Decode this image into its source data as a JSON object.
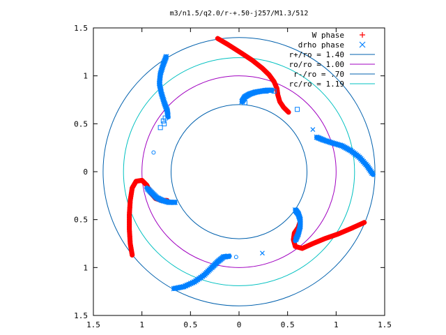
{
  "chart_data": {
    "type": "scatter",
    "title": "m3/n1.5/q2.0/r-+.50-j257/M1.3/512",
    "xlabel": "",
    "ylabel": "",
    "xlim": [
      -1.5,
      1.5
    ],
    "ylim": [
      -1.5,
      1.5
    ],
    "x_ticks": [
      -1.5,
      -1,
      -0.5,
      0,
      0.5,
      1,
      1.5
    ],
    "y_ticks": [
      -1.5,
      -1,
      -0.5,
      0,
      0.5,
      1,
      1.5
    ],
    "x_tick_labels": [
      "1.5",
      "1",
      "0.5",
      "0",
      "0.5",
      "1",
      "1.5"
    ],
    "y_tick_labels": [
      "1.5",
      "1",
      "0.5",
      "0",
      "0.5",
      "1",
      "1.5"
    ],
    "grid": false,
    "legend_position": "top-right",
    "legend": [
      {
        "label": "W phase",
        "color": "#ff0000",
        "marker": "plus"
      },
      {
        "label": "drho phase",
        "color": "#0080ff",
        "marker": "cross"
      },
      {
        "label": "r+/ro = 1.40",
        "color": "#0060ad",
        "marker": "line"
      },
      {
        "label": "ro/ro = 1.00",
        "color": "#a000c0",
        "marker": "line"
      },
      {
        "label": "r-/ro = .70",
        "color": "#0060ad",
        "marker": "line"
      },
      {
        "label": "rc/ro = 1.19",
        "color": "#00c0c0",
        "marker": "line"
      }
    ],
    "circles": [
      {
        "r": 1.4,
        "color": "#0060ad"
      },
      {
        "r": 1.0,
        "color": "#a000c0"
      },
      {
        "r": 0.7,
        "color": "#0060ad"
      },
      {
        "r": 1.19,
        "color": "#00c0c0"
      }
    ],
    "series": [
      {
        "name": "W phase",
        "color": "#ff0000",
        "curves": [
          [
            [
              -0.22,
              1.39
            ],
            [
              -0.12,
              1.33
            ],
            [
              0.02,
              1.24
            ],
            [
              0.14,
              1.16
            ],
            [
              0.24,
              1.08
            ],
            [
              0.31,
              1.01
            ],
            [
              0.36,
              0.94
            ],
            [
              0.39,
              0.87
            ],
            [
              0.4,
              0.8
            ],
            [
              0.42,
              0.73
            ],
            [
              0.46,
              0.67
            ],
            [
              0.51,
              0.62
            ]
          ],
          [
            [
              1.29,
              -0.53
            ],
            [
              1.16,
              -0.59
            ],
            [
              1.02,
              -0.65
            ],
            [
              0.88,
              -0.7
            ],
            [
              0.76,
              -0.75
            ],
            [
              0.65,
              -0.8
            ],
            [
              0.58,
              -0.78
            ],
            [
              0.56,
              -0.71
            ],
            [
              0.57,
              -0.64
            ],
            [
              0.61,
              -0.58
            ],
            [
              0.63,
              -0.52
            ]
          ],
          [
            [
              -1.1,
              -0.87
            ],
            [
              -1.12,
              -0.75
            ],
            [
              -1.13,
              -0.6
            ],
            [
              -1.13,
              -0.45
            ],
            [
              -1.12,
              -0.3
            ],
            [
              -1.1,
              -0.17
            ],
            [
              -1.06,
              -0.1
            ],
            [
              -1.0,
              -0.09
            ],
            [
              -0.95,
              -0.14
            ],
            [
              -0.91,
              -0.22
            ],
            [
              -0.86,
              -0.28
            ],
            [
              -0.8,
              -0.3
            ],
            [
              -0.74,
              -0.3
            ]
          ]
        ],
        "scattered": []
      },
      {
        "name": "drho phase",
        "color": "#0080ff",
        "curves": [
          [
            [
              -0.75,
              1.2
            ],
            [
              -0.78,
              1.12
            ],
            [
              -0.81,
              1.02
            ],
            [
              -0.82,
              0.92
            ],
            [
              -0.8,
              0.82
            ],
            [
              -0.77,
              0.72
            ],
            [
              -0.74,
              0.64
            ],
            [
              -0.73,
              0.57
            ]
          ],
          [
            [
              0.03,
              0.73
            ],
            [
              0.06,
              0.78
            ],
            [
              0.11,
              0.81
            ],
            [
              0.17,
              0.83
            ],
            [
              0.23,
              0.84
            ],
            [
              0.29,
              0.85
            ],
            [
              0.34,
              0.85
            ]
          ],
          [
            [
              0.8,
              0.36
            ],
            [
              0.87,
              0.33
            ],
            [
              0.96,
              0.3
            ],
            [
              1.06,
              0.27
            ],
            [
              1.15,
              0.22
            ],
            [
              1.24,
              0.15
            ],
            [
              1.32,
              0.06
            ],
            [
              1.38,
              -0.03
            ]
          ],
          [
            [
              0.58,
              -0.4
            ],
            [
              0.61,
              -0.44
            ],
            [
              0.63,
              -0.5
            ],
            [
              0.63,
              -0.57
            ],
            [
              0.61,
              -0.65
            ],
            [
              0.58,
              -0.72
            ]
          ],
          [
            [
              -0.67,
              -1.22
            ],
            [
              -0.57,
              -1.2
            ],
            [
              -0.46,
              -1.15
            ],
            [
              -0.36,
              -1.08
            ],
            [
              -0.28,
              -1.0
            ],
            [
              -0.22,
              -0.94
            ],
            [
              -0.16,
              -0.89
            ],
            [
              -0.1,
              -0.88
            ]
          ],
          [
            [
              -0.66,
              -0.32
            ],
            [
              -0.72,
              -0.32
            ],
            [
              -0.79,
              -0.3
            ],
            [
              -0.85,
              -0.27
            ],
            [
              -0.9,
              -0.22
            ],
            [
              -0.95,
              -0.17
            ]
          ]
        ],
        "scattered": [
          [
            -0.77,
            0.5
          ],
          [
            -0.78,
            0.53
          ],
          [
            -0.76,
            0.56
          ],
          [
            -0.81,
            0.46
          ],
          [
            -0.88,
            0.2
          ],
          [
            0.6,
            0.65
          ],
          [
            0.76,
            0.44
          ],
          [
            0.24,
            -0.85
          ],
          [
            -0.03,
            -0.89
          ],
          [
            0.06,
            0.72
          ],
          [
            0.28,
            0.84
          ],
          [
            0.36,
            0.84
          ]
        ]
      }
    ]
  }
}
